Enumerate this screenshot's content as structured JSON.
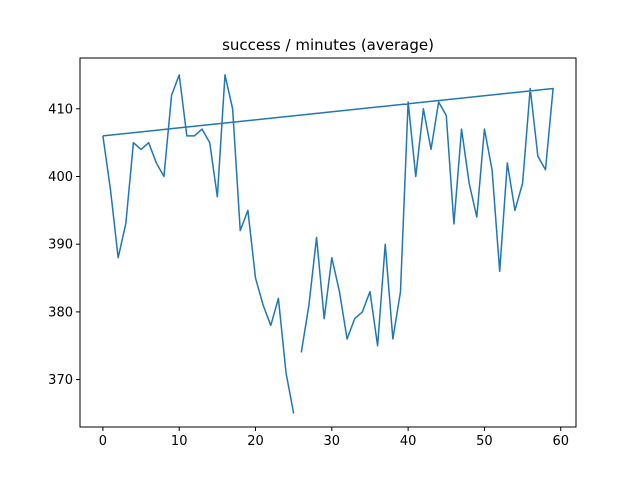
{
  "chart_data": {
    "type": "line",
    "title": "success / minutes (average)",
    "xlabel": "",
    "ylabel": "",
    "xlim": [
      -3,
      62
    ],
    "ylim": [
      363,
      417.5
    ],
    "xticks": [
      0,
      10,
      20,
      30,
      40,
      50,
      60
    ],
    "yticks": [
      370,
      380,
      390,
      400,
      410
    ],
    "xtick_labels": [
      "0",
      "10",
      "20",
      "30",
      "40",
      "50",
      "60"
    ],
    "ytick_labels": [
      "370",
      "380",
      "390",
      "400",
      "410"
    ],
    "grid": false,
    "line_color": "#1f77b4",
    "series": [
      {
        "segments": [
          {
            "x": [
              0,
              1,
              2,
              3,
              4,
              5,
              6,
              7,
              8,
              9,
              10,
              11,
              12,
              13,
              14,
              15,
              16,
              17,
              18,
              19,
              20,
              21,
              22,
              23,
              24,
              25
            ],
            "y": [
              406,
              398,
              388,
              393,
              405,
              404,
              405,
              402,
              400,
              412,
              415,
              406,
              406,
              407,
              405,
              397,
              415,
              410,
              392,
              395,
              385,
              381,
              378,
              382,
              371,
              365
            ]
          },
          {
            "x": [
              26,
              27,
              28,
              29,
              30,
              31,
              32,
              33,
              34,
              35,
              36,
              37,
              38,
              39,
              40,
              41,
              42,
              43,
              44,
              45,
              46,
              47,
              48,
              49,
              50,
              51,
              52,
              53,
              54,
              55,
              56,
              57,
              58,
              59,
              0
            ],
            "y": [
              374,
              381,
              391,
              379,
              388,
              383,
              376,
              379,
              380,
              383,
              375,
              390,
              376,
              383,
              411,
              400,
              410,
              404,
              411,
              409,
              393,
              407,
              399,
              394,
              407,
              401,
              386,
              402,
              395,
              399,
              413,
              403,
              401,
              413,
              406
            ]
          }
        ]
      }
    ]
  }
}
